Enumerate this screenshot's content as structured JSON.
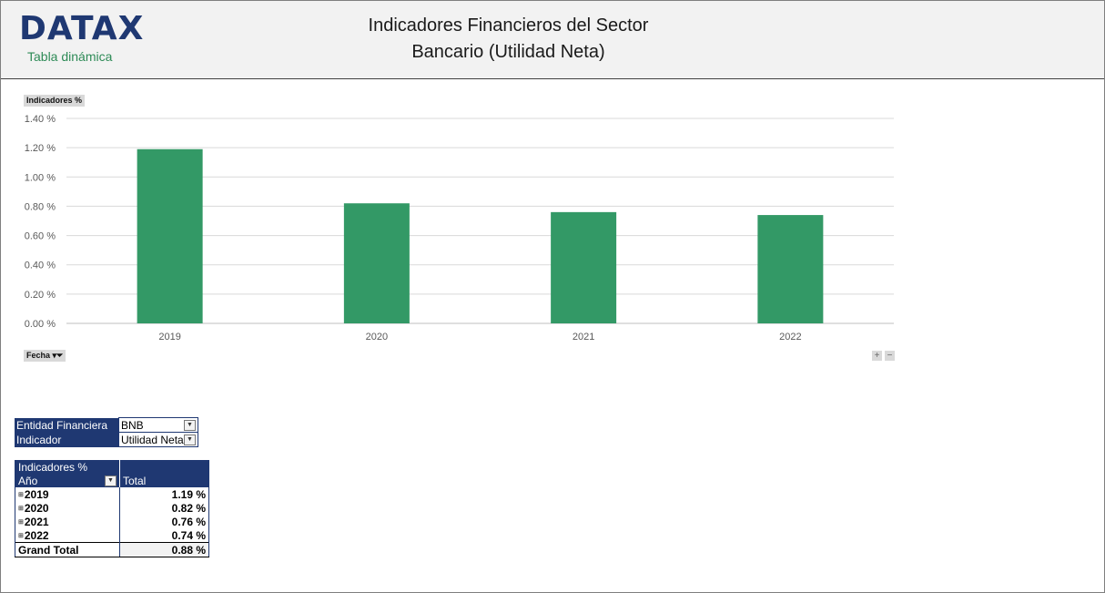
{
  "header": {
    "logo": "DATAX",
    "logo_subtitle": "Tabla dinámica",
    "title_line1": "Indicadores Financieros del Sector",
    "title_line2": "Bancario (Utilidad Neta)"
  },
  "chart_controls": {
    "value_field": "Indicadores %",
    "axis_field": "Fecha",
    "zoom_in": "+",
    "zoom_out": "−"
  },
  "chart_data": {
    "type": "bar",
    "categories": [
      "2019",
      "2020",
      "2021",
      "2022"
    ],
    "values": [
      1.19,
      0.82,
      0.76,
      0.74
    ],
    "ylim": [
      0,
      1.4
    ],
    "yticks": [
      0,
      0.2,
      0.4,
      0.6,
      0.8,
      1.0,
      1.2,
      1.4
    ],
    "ytick_labels": [
      "0.00 %",
      "0.20 %",
      "0.40 %",
      "0.60 %",
      "0.80 %",
      "1.00 %",
      "1.20 %",
      "1.40 %"
    ],
    "bar_color": "#339966",
    "grid": true,
    "legend": "none"
  },
  "filters": [
    {
      "label": "Entidad Financiera",
      "value": "BNB"
    },
    {
      "label": "Indicador",
      "value": "Utilidad Neta"
    }
  ],
  "pivot": {
    "value_header": "Indicadores %",
    "row_header": "Año",
    "col_header": "Total",
    "rows": [
      {
        "year": "2019",
        "total": "1.19 %"
      },
      {
        "year": "2020",
        "total": "0.82 %"
      },
      {
        "year": "2021",
        "total": "0.76 %"
      },
      {
        "year": "2022",
        "total": "0.74 %"
      }
    ],
    "grand_total_label": "Grand Total",
    "grand_total": "0.88 %"
  },
  "colors": {
    "navy": "#1f3872",
    "green": "#339966",
    "header_bg": "#f2f2f2"
  }
}
